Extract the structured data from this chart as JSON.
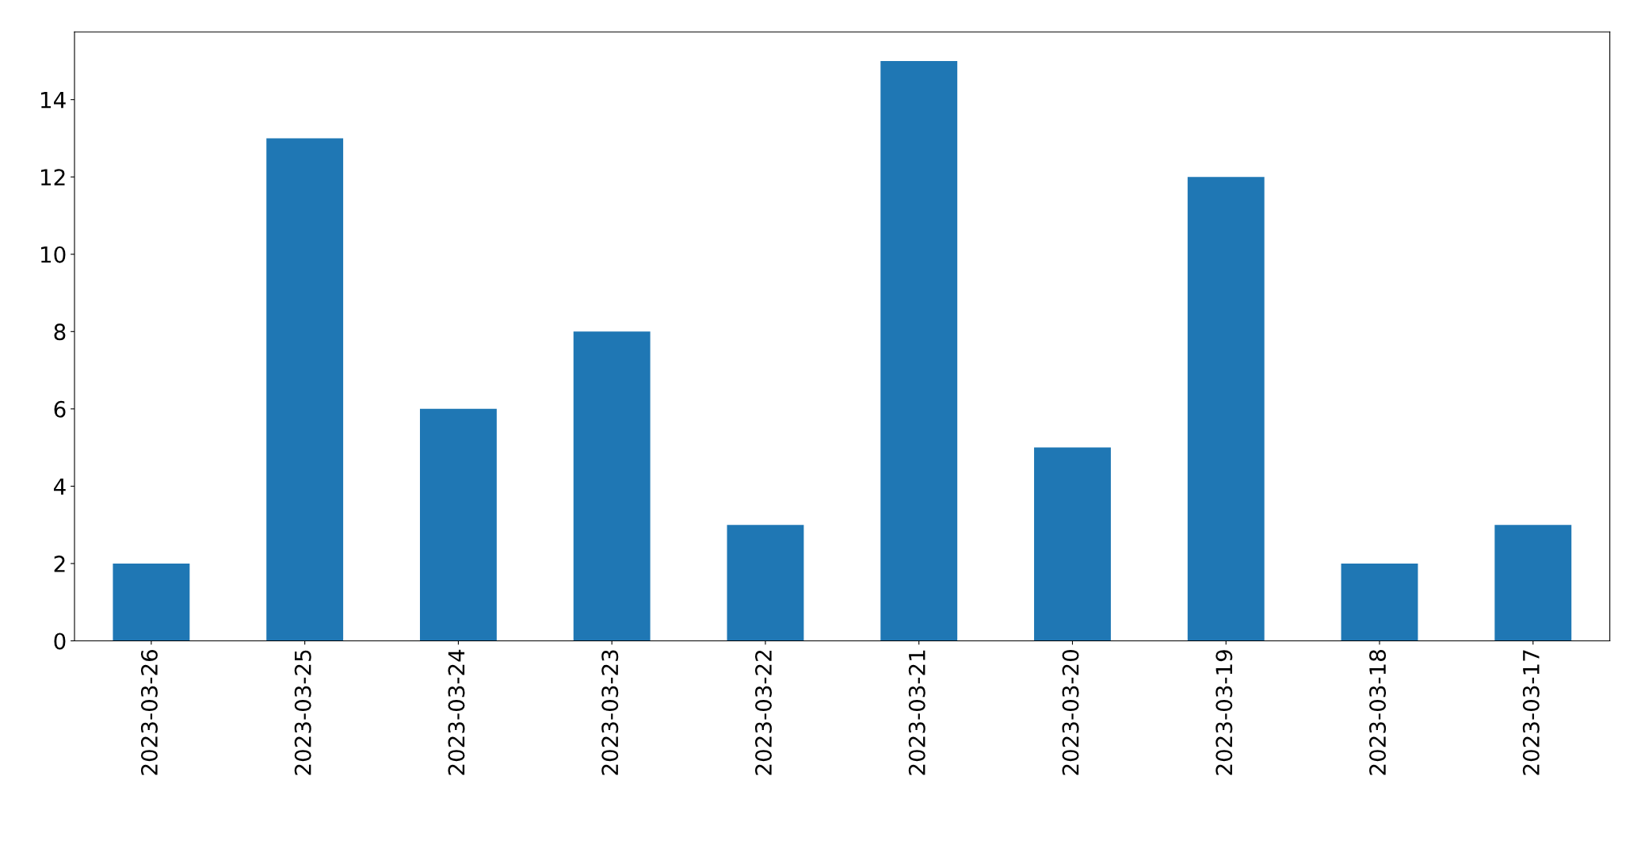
{
  "chart_data": {
    "type": "bar",
    "categories": [
      "2023-03-26",
      "2023-03-25",
      "2023-03-24",
      "2023-03-23",
      "2023-03-22",
      "2023-03-21",
      "2023-03-20",
      "2023-03-19",
      "2023-03-18",
      "2023-03-17"
    ],
    "values": [
      2,
      13,
      6,
      8,
      3,
      15,
      5,
      12,
      2,
      3
    ],
    "color": "#1f77b4",
    "ylim": [
      0,
      15.75
    ],
    "yticks": [
      0,
      2,
      4,
      6,
      8,
      10,
      12,
      14
    ],
    "grid": false,
    "legend": false
  }
}
